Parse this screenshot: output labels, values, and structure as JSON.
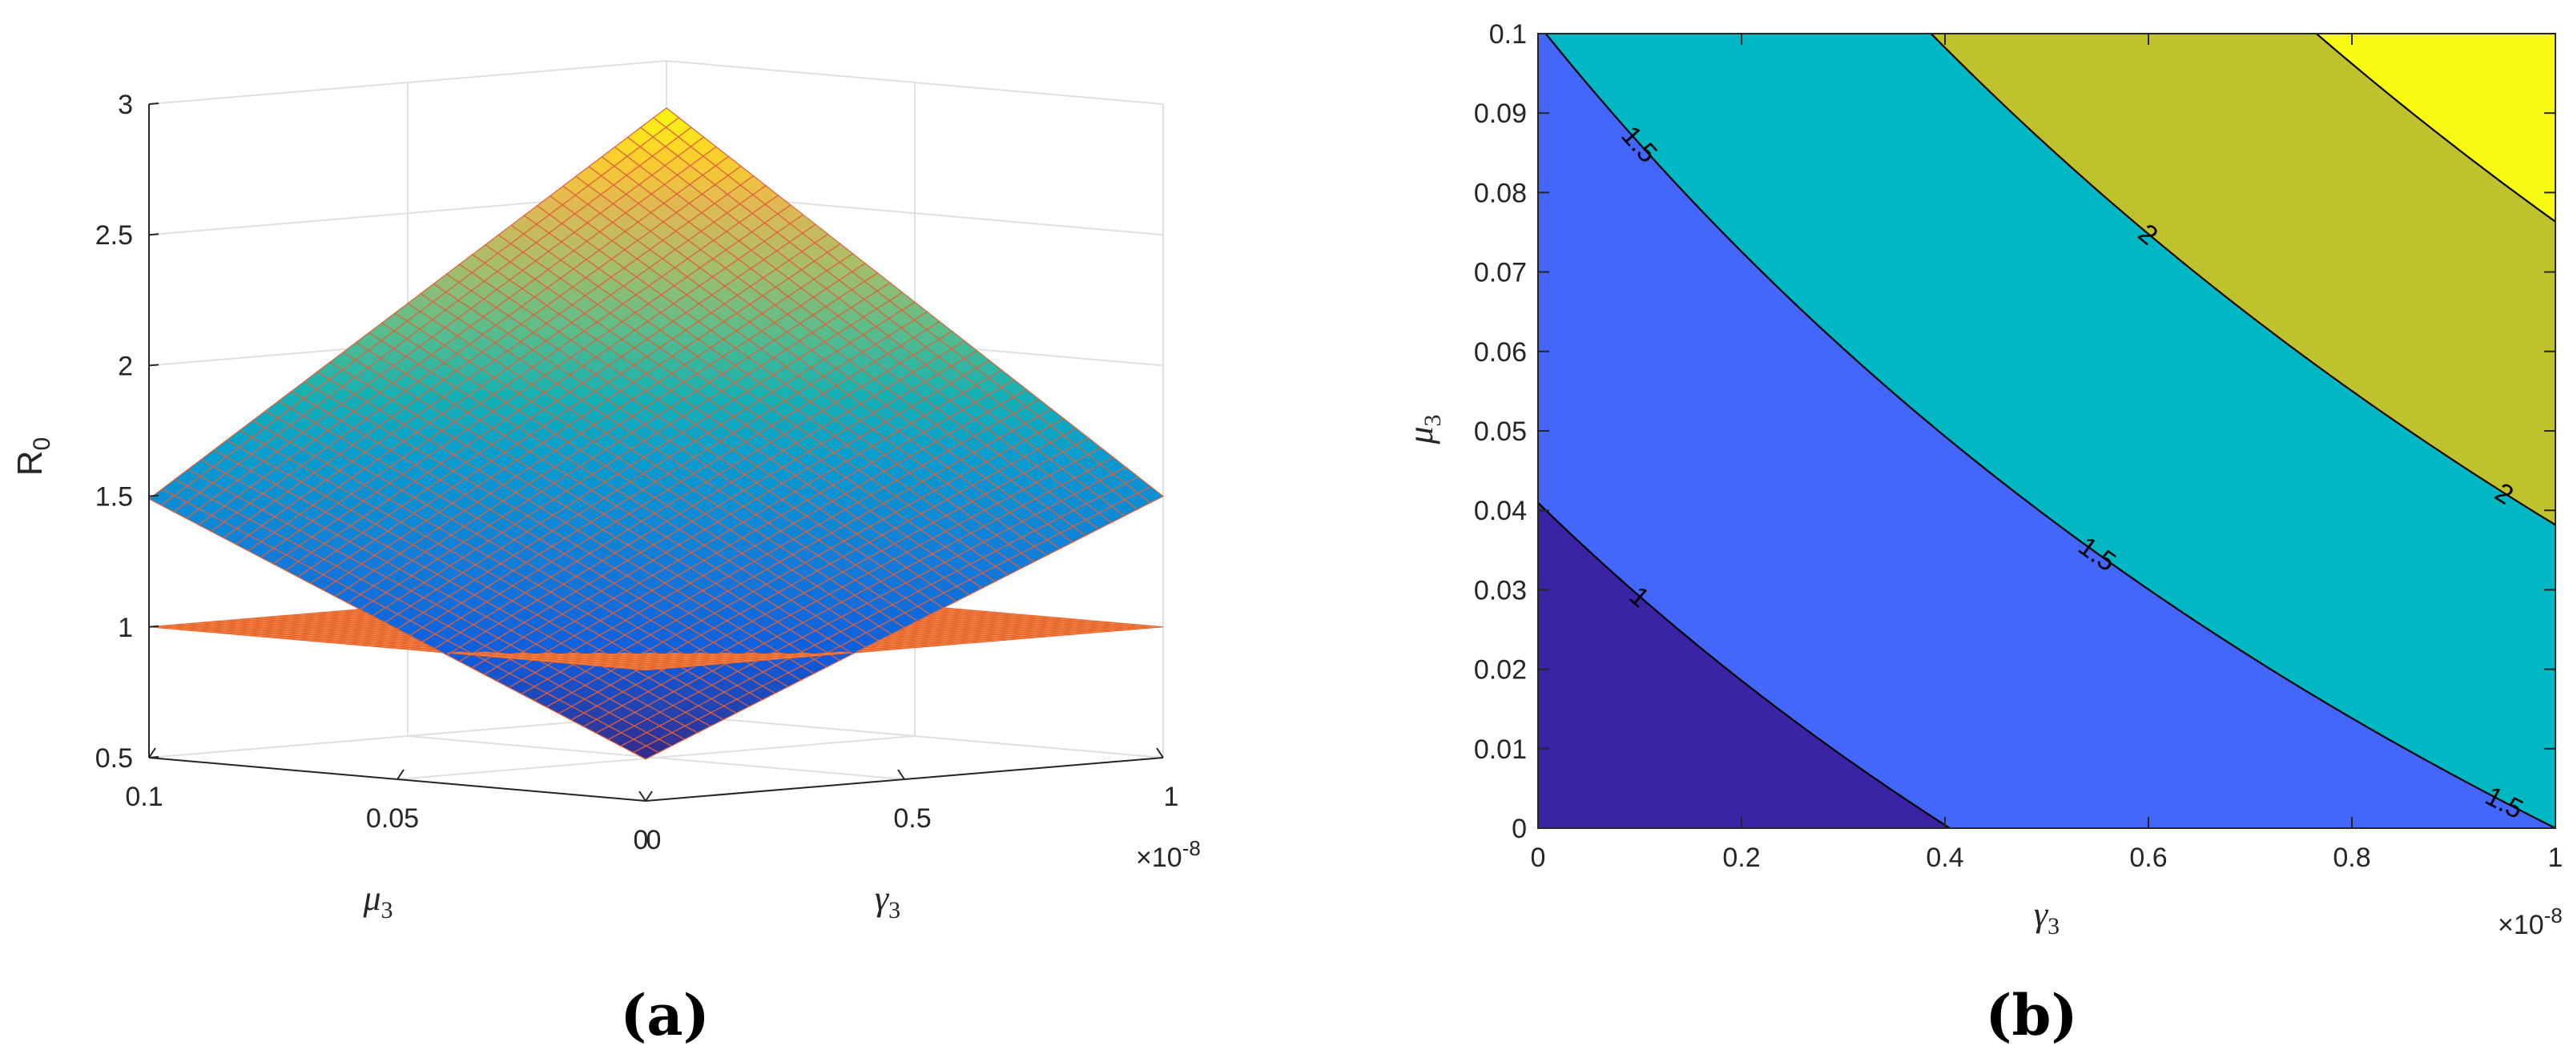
{
  "chart_data": [
    {
      "panel": "(a)",
      "type": "surface3d",
      "title": "",
      "surfaces": [
        {
          "kind": "R0 surface",
          "corners": {
            "g0_m0": 0.66,
            "g1_m0": 1.5,
            "g0_m01": 1.49,
            "g1_m01": 2.82
          },
          "colormap": "parula"
        },
        {
          "kind": "plane",
          "value": 1,
          "color": "#ee6c34"
        }
      ],
      "x": {
        "label": "γ",
        "sub": "3",
        "range": [
          0,
          1
        ],
        "ticks": [
          "0",
          "0.5",
          "1"
        ],
        "multiplier": "×10",
        "exponent": "-8"
      },
      "y": {
        "label": "μ",
        "sub": "3",
        "range": [
          0,
          0.1
        ],
        "ticks": [
          "0",
          "0.05",
          "0.1"
        ]
      },
      "z": {
        "label": "R",
        "sub": "0",
        "range": [
          0.5,
          3
        ],
        "ticks": [
          "0.5",
          "1",
          "1.5",
          "2",
          "2.5",
          "3"
        ]
      },
      "caption": "(a)"
    },
    {
      "panel": "(b)",
      "type": "contour",
      "title": "",
      "levels": [
        1,
        1.5,
        2,
        2.5
      ],
      "level_labels": [
        "1",
        "1.5",
        "2"
      ],
      "colors": [
        "#3a24a5",
        "#4366fd",
        "#00b8c4",
        "#bfc12d",
        "#f9fa14"
      ],
      "function": {
        "base": 0.66,
        "gamma_coef": 0.84,
        "mu_coef": 8.3,
        "cross_coef": 4.8
      },
      "x": {
        "label": "γ",
        "sub": "3",
        "range": [
          0,
          1
        ],
        "ticks": [
          "0",
          "0.2",
          "0.4",
          "0.6",
          "0.8",
          "1"
        ],
        "multiplier": "×10",
        "exponent": "-8"
      },
      "y": {
        "label": "μ",
        "sub": "3",
        "range": [
          0,
          0.1
        ],
        "ticks": [
          "0",
          "0.01",
          "0.02",
          "0.03",
          "0.04",
          "0.05",
          "0.06",
          "0.07",
          "0.08",
          "0.09",
          "0.1"
        ]
      },
      "caption": "(b)"
    }
  ]
}
